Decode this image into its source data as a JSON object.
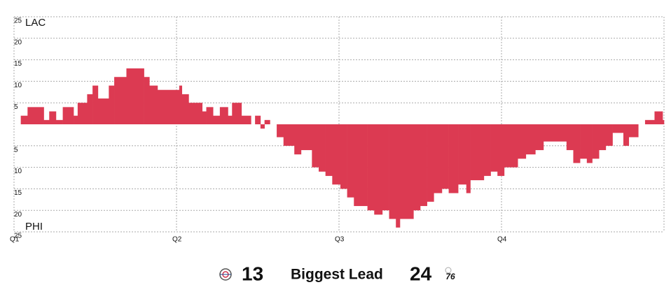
{
  "chart_data": {
    "type": "bar",
    "annotations": [
      "LAC",
      "PHI"
    ],
    "x": [
      0,
      0.5,
      1.0,
      2.2,
      2.6,
      3.1,
      3.6,
      4.4,
      4.7,
      5.4,
      5.8,
      6.2,
      7.0,
      7.4,
      8.3,
      9.6,
      10.0,
      10.6,
      12.2,
      12.4,
      12.9,
      13.9,
      14.2,
      14.7,
      15.2,
      15.8,
      16.1,
      16.8,
      17.5,
      17.8,
      18.2,
      18.5,
      18.9,
      19.4,
      19.9,
      20.7,
      21.2,
      22.0,
      22.5,
      23.0,
      23.5,
      24.1,
      24.6,
      25.1,
      26.1,
      26.6,
      27.2,
      27.7,
      28.2,
      28.5,
      29.5,
      30.0,
      30.5,
      31.0,
      31.6,
      32.1,
      32.8,
      33.4,
      33.7,
      34.7,
      35.2,
      35.7,
      36.2,
      37.2,
      37.8,
      38.5,
      39.1,
      40.8,
      41.3,
      41.8,
      42.3,
      42.7,
      43.2,
      43.7,
      44.2,
      45.0,
      45.4,
      46.1,
      46.6,
      47.3,
      47.9
    ],
    "values": [
      0,
      2,
      4,
      1,
      3,
      1,
      4,
      2,
      5,
      7,
      9,
      6,
      9,
      11,
      13,
      11,
      9,
      8,
      9,
      7,
      5,
      3,
      4,
      2,
      4,
      2,
      5,
      2,
      0,
      2,
      -1,
      1,
      0,
      -3,
      -5,
      -7,
      -6,
      -10,
      -11,
      -12,
      -14,
      -15,
      -17,
      -19,
      -20,
      -21,
      -20,
      -22,
      -24,
      -22,
      -20,
      -19,
      -18,
      -16,
      -15,
      -16,
      -14,
      -16,
      -13,
      -12,
      -11,
      -12,
      -10,
      -8,
      -7,
      -6,
      -4,
      -6,
      -9,
      -8,
      -9,
      -8,
      -6,
      -5,
      -2,
      -5,
      -3,
      0,
      1,
      3,
      1
    ],
    "color": "#dc3a52",
    "xlim": [
      0,
      48
    ],
    "xticks": [
      {
        "value": 0,
        "label": "Q1"
      },
      {
        "value": 12,
        "label": "Q2"
      },
      {
        "value": 24,
        "label": "Q3"
      },
      {
        "value": 36,
        "label": "Q4"
      }
    ],
    "ylim": [
      -25,
      25
    ],
    "yticks": [
      {
        "value": -25,
        "label": "25"
      },
      {
        "value": -20,
        "label": "20"
      },
      {
        "value": -15,
        "label": "15"
      },
      {
        "value": -10,
        "label": "10"
      },
      {
        "value": -5,
        "label": "5"
      },
      5,
      10,
      15,
      20,
      25
    ],
    "grid": true
  },
  "footer": {
    "home_lead": 13,
    "home_color": "#c8102e",
    "label": "Biggest Lead",
    "away_lead": 24,
    "away_color": "#1d6bb5",
    "away_logo_text": "76"
  }
}
